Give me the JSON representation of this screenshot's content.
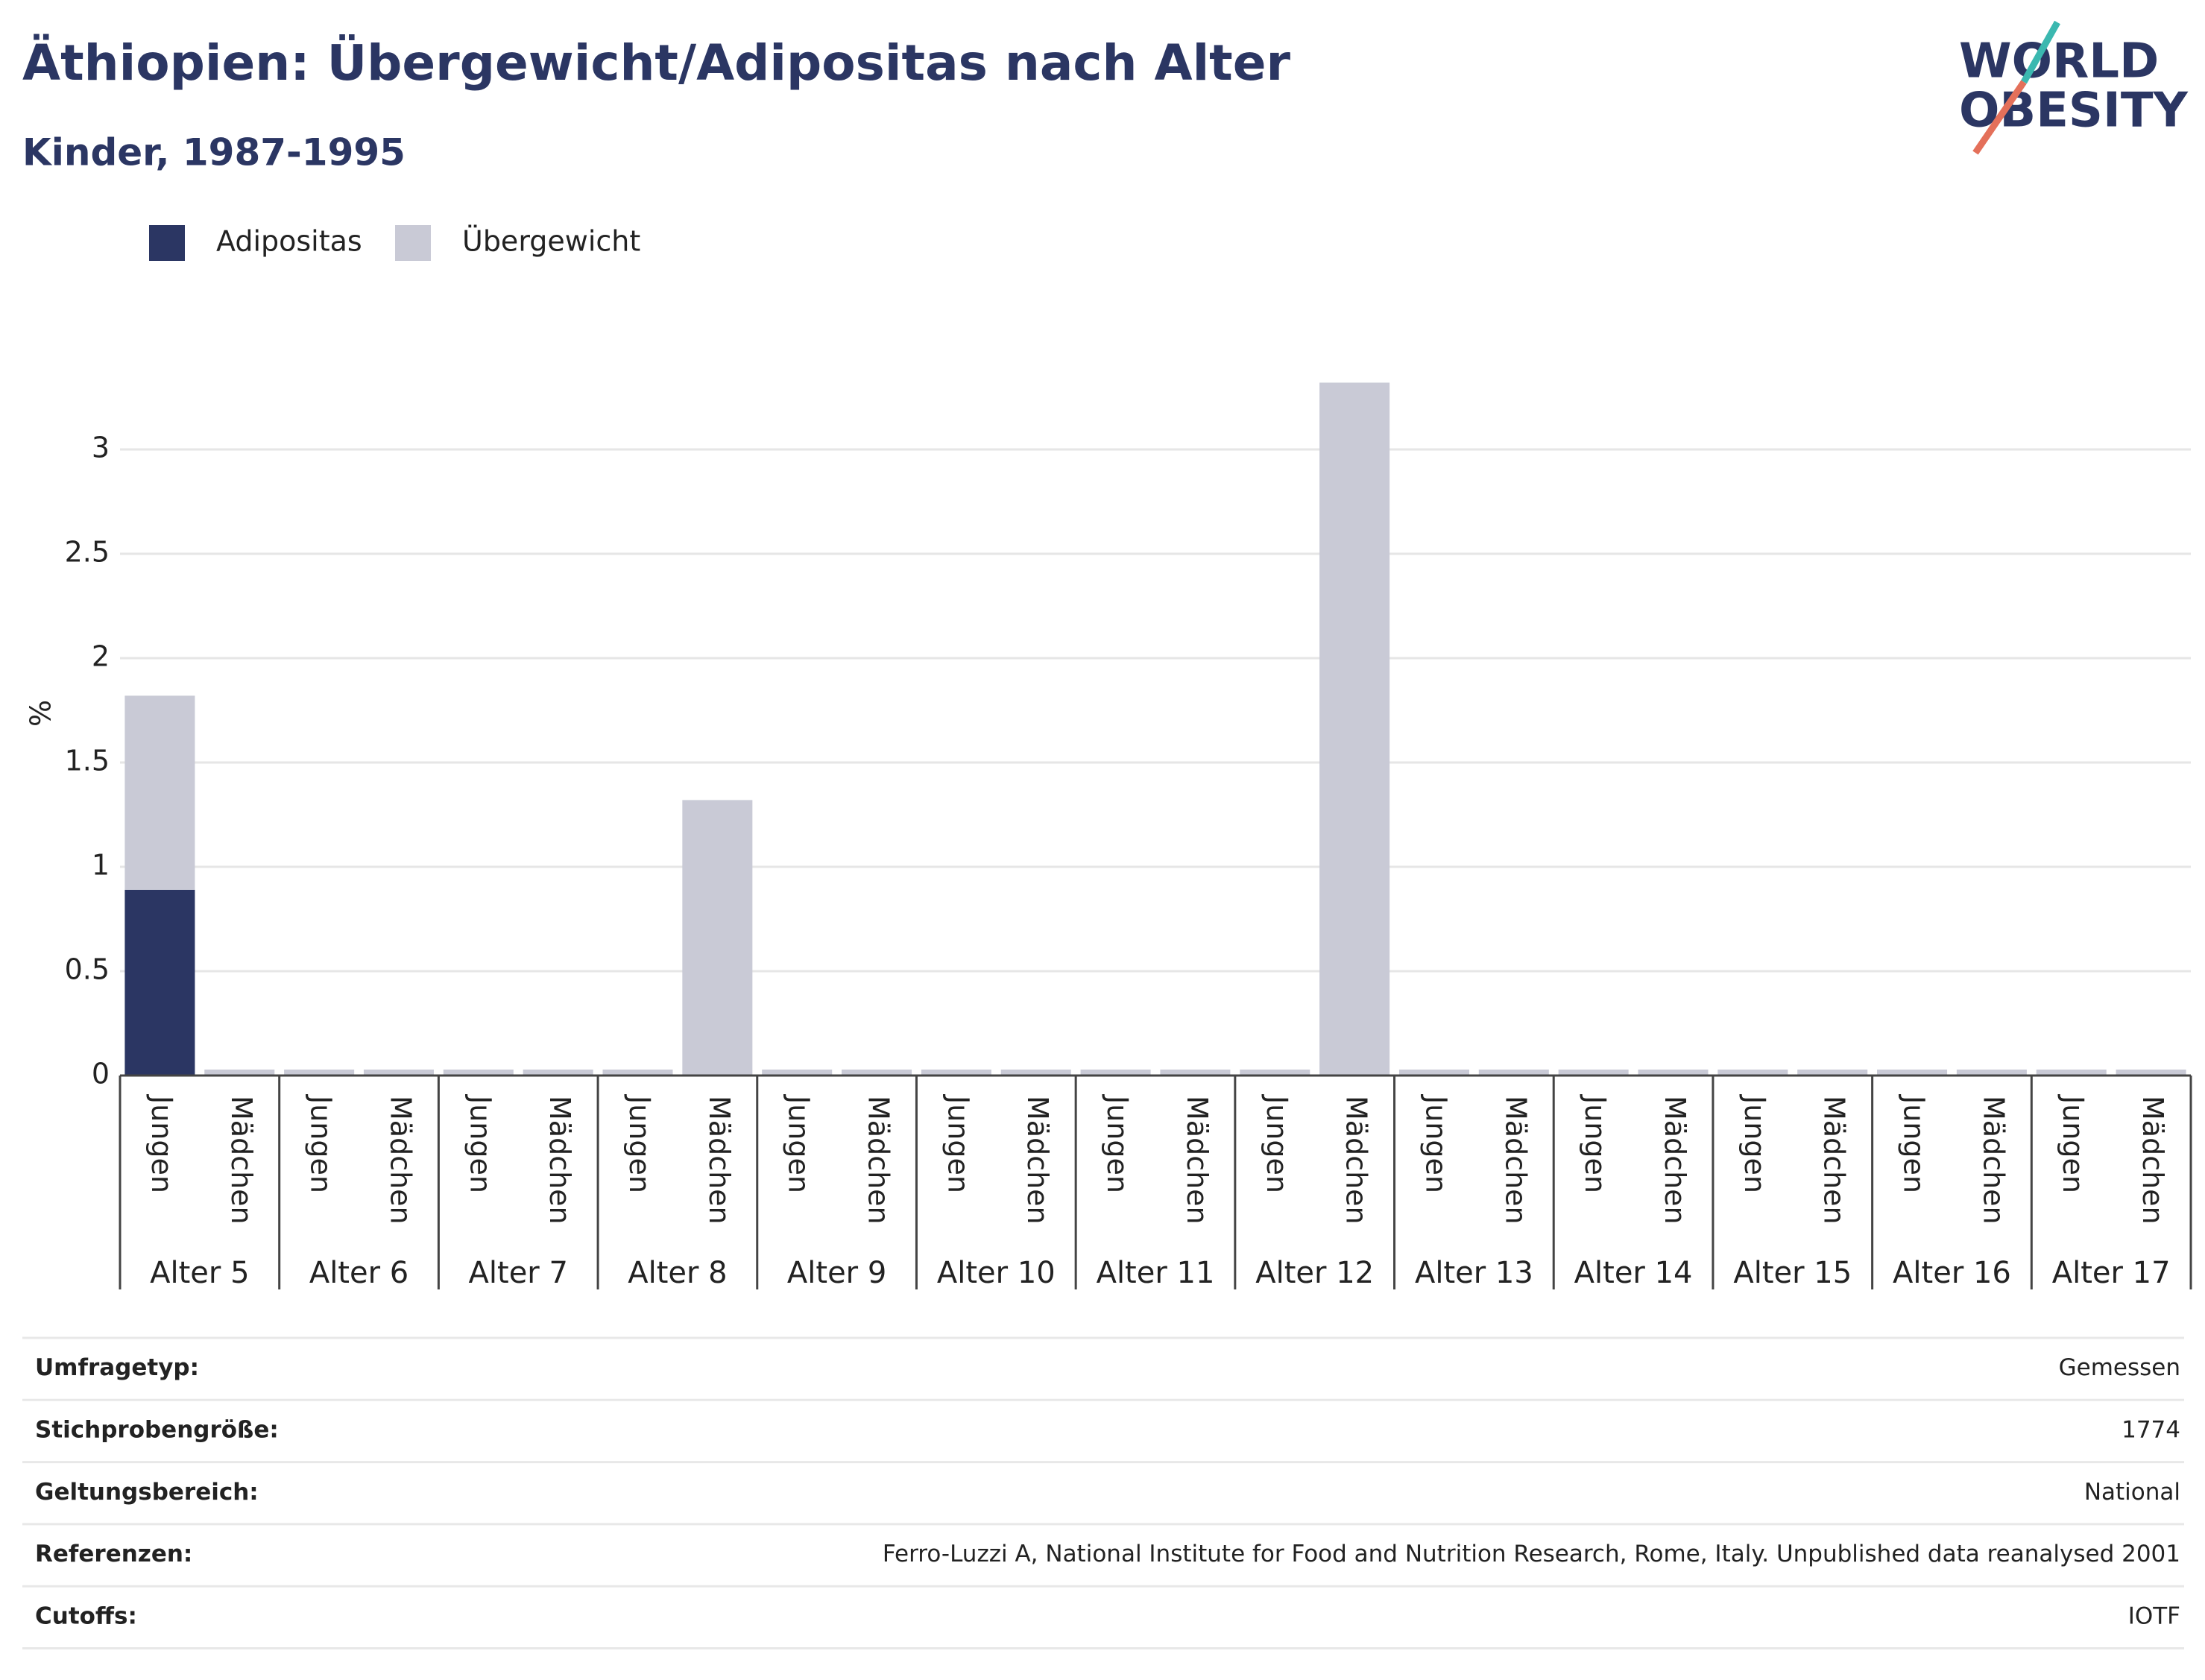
{
  "chart_data": {
    "type": "bar",
    "stacked": true,
    "title": "Äthiopien: Übergewicht/Adipositas nach Alter",
    "subtitle": "Kinder, 1987-1995",
    "y_label": "%",
    "categories": [
      "Jungen",
      "Mädchen",
      "Jungen",
      "Mädchen",
      "Jungen",
      "Mädchen",
      "Jungen",
      "Mädchen",
      "Jungen",
      "Mädchen",
      "Jungen",
      "Mädchen",
      "Jungen",
      "Mädchen",
      "Jungen",
      "Mädchen",
      "Jungen",
      "Mädchen",
      "Jungen",
      "Mädchen",
      "Jungen",
      "Mädchen",
      "Jungen",
      "Mädchen",
      "Jungen",
      "Mädchen"
    ],
    "groups": [
      "Alter 5",
      "Alter 6",
      "Alter 7",
      "Alter 8",
      "Alter 9",
      "Alter 10",
      "Alter 11",
      "Alter 12",
      "Alter 13",
      "Alter 14",
      "Alter 15",
      "Alter 16",
      "Alter 17"
    ],
    "series": [
      {
        "name": "Adipositas",
        "color": "#2b3663",
        "values": [
          0.89,
          0,
          0,
          0,
          0,
          0,
          0,
          0,
          0,
          0,
          0,
          0,
          0,
          0,
          0,
          0,
          0,
          0,
          0,
          0,
          0,
          0,
          0,
          0,
          0,
          0
        ]
      },
      {
        "name": "Übergewicht",
        "color": "#c9cad6",
        "values": [
          0.93,
          0,
          0,
          0,
          0,
          0,
          0,
          1.32,
          0,
          0,
          0,
          0,
          0,
          0,
          0,
          3.32,
          0,
          0,
          0,
          0,
          0,
          0,
          0,
          0,
          0,
          0
        ]
      }
    ],
    "ylim": [
      0,
      3.5
    ],
    "yticks": [
      0,
      0.5,
      1,
      1.5,
      2,
      2.5,
      3
    ],
    "grid": true,
    "legend": "top-left"
  },
  "logo": {
    "line1": "WORLD",
    "line2": "OBESITY"
  },
  "table": {
    "rows": [
      [
        "Umfragetyp:",
        "Gemessen"
      ],
      [
        "Stichprobengröße:",
        "1774"
      ],
      [
        "Geltungsbereich:",
        "National"
      ],
      [
        "Referenzen:",
        "Ferro-Luzzi A, National Institute for Food and Nutrition Research, Rome, Italy. Unpublished data reanalysed 2001"
      ],
      [
        "Cutoffs:",
        "IOTF"
      ]
    ]
  }
}
